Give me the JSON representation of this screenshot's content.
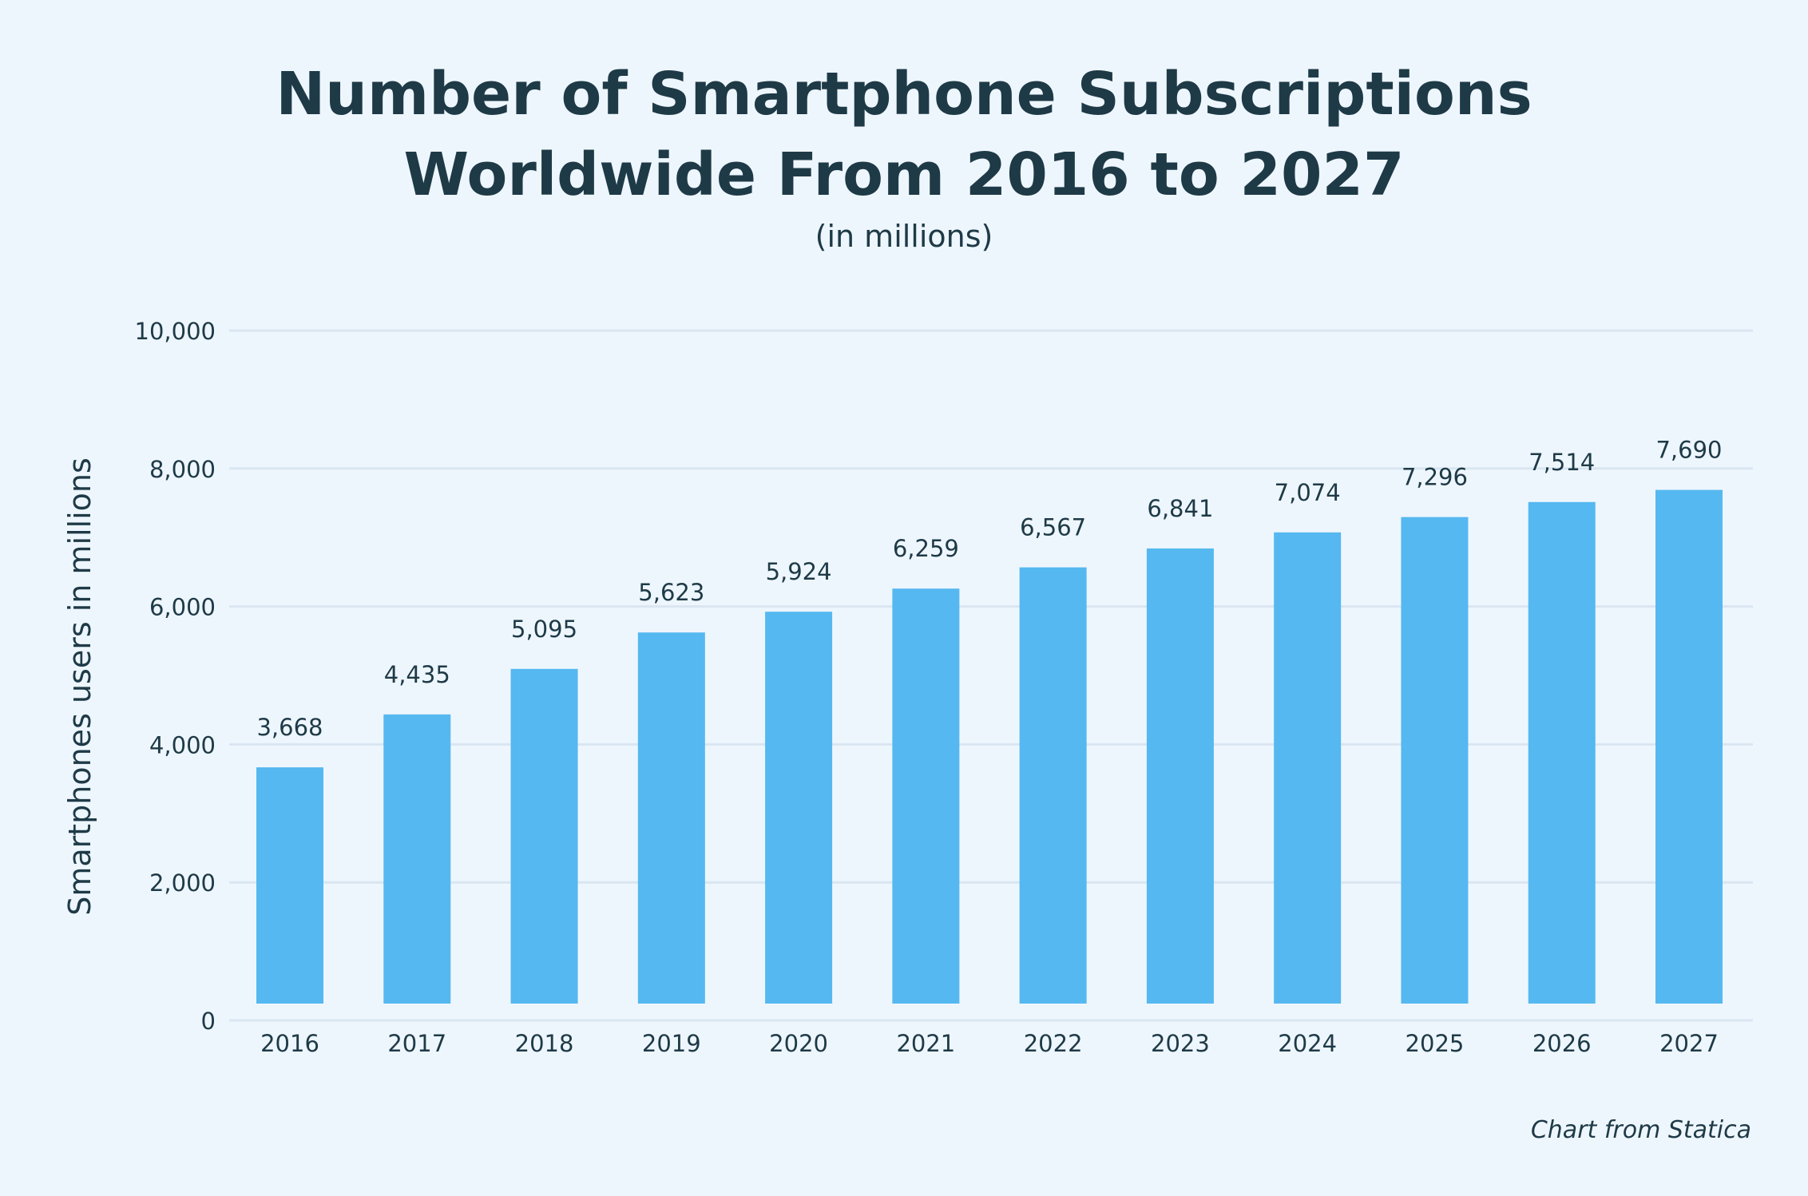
{
  "colors": {
    "background": "#eef6fd",
    "bar": "#55b8f0",
    "grid": "#d9e6f2",
    "text": "#1e3a47"
  },
  "chart_data": {
    "type": "bar",
    "title_lines": [
      "Number of Smartphone Subscriptions",
      "Worldwide From 2016 to 2027"
    ],
    "subtitle": "(in millions)",
    "xlabel": "",
    "ylabel": "Smartphones users in millions",
    "ylim": [
      0,
      10000
    ],
    "yticks": [
      0,
      2000,
      4000,
      6000,
      8000,
      10000
    ],
    "ytick_labels": [
      "0",
      "2,000",
      "4,000",
      "6,000",
      "8,000",
      "10,000"
    ],
    "grid": true,
    "categories": [
      "2016",
      "2017",
      "2018",
      "2019",
      "2020",
      "2021",
      "2022",
      "2023",
      "2024",
      "2025",
      "2026",
      "2027"
    ],
    "values": [
      3668,
      4435,
      5095,
      5623,
      5924,
      6259,
      6567,
      6841,
      7074,
      7296,
      7514,
      7690
    ],
    "value_labels": [
      "3,668",
      "4,435",
      "5,095",
      "5,623",
      "5,924",
      "6,259",
      "6,567",
      "6,841",
      "7,074",
      "7,296",
      "7,514",
      "7,690"
    ],
    "source": "Chart from Statica"
  }
}
